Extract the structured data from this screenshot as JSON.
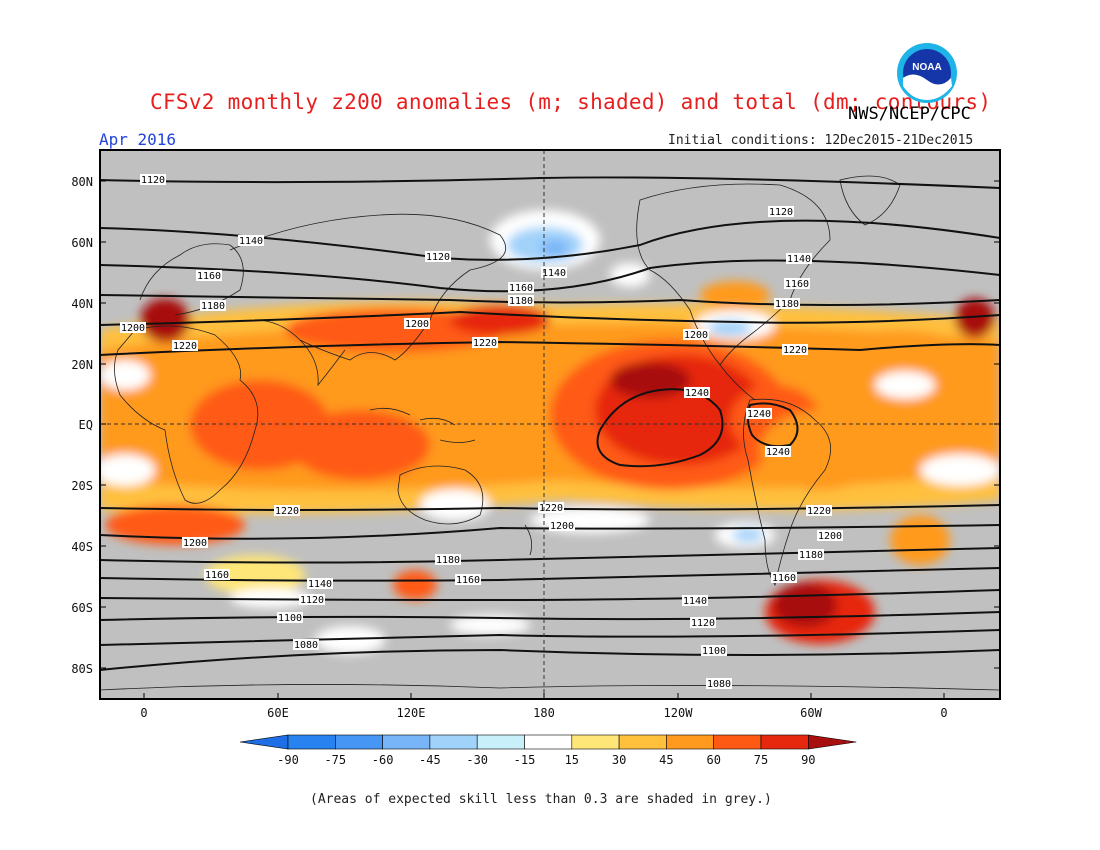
{
  "header": {
    "title": "CFSv2 monthly z200 anomalies (m; shaded) and total (dm; contours)",
    "agency": "NWS/NCEP/CPC",
    "month": "Apr 2016",
    "initial_conditions": "Initial conditions: 12Dec2015-21Dec2015",
    "logo_text": "NOAA"
  },
  "map": {
    "lat_labels": [
      "80N",
      "60N",
      "40N",
      "20N",
      "EQ",
      "20S",
      "40S",
      "60S",
      "80S"
    ],
    "lon_labels": [
      "0",
      "60E",
      "120E",
      "180",
      "120W",
      "60W",
      "0"
    ],
    "contour_labels": [
      "1080",
      "1100",
      "1120",
      "1140",
      "1160",
      "1180",
      "1200",
      "1220",
      "1240"
    ],
    "skill_shading_color": "#c0c0c0"
  },
  "colorbar": {
    "ticks": [
      "-90",
      "-75",
      "-60",
      "-45",
      "-30",
      "-15",
      "15",
      "30",
      "45",
      "60",
      "75",
      "90"
    ],
    "colors": [
      "#1e6ee6",
      "#2882f0",
      "#4696f5",
      "#78b4f8",
      "#a0d2fa",
      "#c8f0fa",
      "#ffffff",
      "#ffe678",
      "#ffc03c",
      "#ff9a1e",
      "#ff5a14",
      "#e6280f",
      "#a81010"
    ]
  },
  "footnote": "(Areas of expected skill less than 0.3 are shaded in grey.)"
}
